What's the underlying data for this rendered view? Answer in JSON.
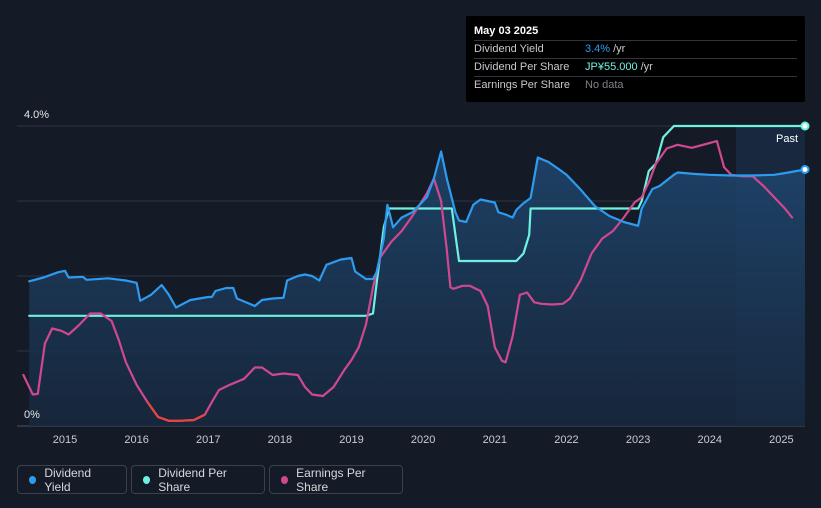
{
  "tooltip": {
    "date": "May 03 2025",
    "rows": [
      {
        "label": "Dividend Yield",
        "value": "3.4%",
        "unit": "/yr"
      },
      {
        "label": "Dividend Per Share",
        "value": "JP¥55.000",
        "unit": "/yr"
      },
      {
        "label": "Earnings Per Share",
        "value": "No data",
        "unit": ""
      }
    ]
  },
  "legend": [
    {
      "label": "Dividend Yield",
      "color": "#2d9bf0"
    },
    {
      "label": "Dividend Per Share",
      "color": "#6ff1e0"
    },
    {
      "label": "Earnings Per Share",
      "color": "#d0488f"
    }
  ],
  "chart_data": {
    "type": "line",
    "y_tick_labels": [
      "4.0%",
      "0%"
    ],
    "ylim": [
      0,
      4.0
    ],
    "xlim": [
      2014.33,
      2025.33
    ],
    "x_tick_labels": [
      "2015",
      "2016",
      "2017",
      "2018",
      "2019",
      "2020",
      "2021",
      "2022",
      "2023",
      "2024",
      "2025"
    ],
    "past_label": "Past",
    "grid": true,
    "legend_position": "bottom",
    "series": [
      {
        "name": "Dividend Yield",
        "color": "#2d9bf0",
        "points": [
          [
            2014.5,
            1.93
          ],
          [
            2014.7,
            1.98
          ],
          [
            2014.9,
            2.05
          ],
          [
            2015.0,
            2.07
          ],
          [
            2015.05,
            1.98
          ],
          [
            2015.25,
            1.99
          ],
          [
            2015.3,
            1.95
          ],
          [
            2015.6,
            1.97
          ],
          [
            2015.85,
            1.94
          ],
          [
            2016.0,
            1.91
          ],
          [
            2016.05,
            1.67
          ],
          [
            2016.2,
            1.75
          ],
          [
            2016.35,
            1.88
          ],
          [
            2016.45,
            1.75
          ],
          [
            2016.55,
            1.58
          ],
          [
            2016.75,
            1.68
          ],
          [
            2017.0,
            1.72
          ],
          [
            2017.05,
            1.72
          ],
          [
            2017.1,
            1.8
          ],
          [
            2017.25,
            1.84
          ],
          [
            2017.35,
            1.84
          ],
          [
            2017.4,
            1.7
          ],
          [
            2017.55,
            1.64
          ],
          [
            2017.65,
            1.6
          ],
          [
            2017.75,
            1.68
          ],
          [
            2017.9,
            1.7
          ],
          [
            2018.05,
            1.71
          ],
          [
            2018.1,
            1.94
          ],
          [
            2018.25,
            2.0
          ],
          [
            2018.35,
            2.02
          ],
          [
            2018.45,
            2.0
          ],
          [
            2018.55,
            1.94
          ],
          [
            2018.65,
            2.15
          ],
          [
            2018.85,
            2.22
          ],
          [
            2019.0,
            2.24
          ],
          [
            2019.05,
            2.06
          ],
          [
            2019.2,
            1.96
          ],
          [
            2019.3,
            1.96
          ],
          [
            2019.35,
            2.05
          ],
          [
            2019.45,
            2.5
          ],
          [
            2019.5,
            2.95
          ],
          [
            2019.58,
            2.65
          ],
          [
            2019.7,
            2.78
          ],
          [
            2019.85,
            2.85
          ],
          [
            2019.95,
            2.95
          ],
          [
            2020.05,
            3.05
          ],
          [
            2020.15,
            3.3
          ],
          [
            2020.25,
            3.66
          ],
          [
            2020.33,
            3.3
          ],
          [
            2020.45,
            2.85
          ],
          [
            2020.5,
            2.74
          ],
          [
            2020.6,
            2.72
          ],
          [
            2020.7,
            2.95
          ],
          [
            2020.8,
            3.02
          ],
          [
            2021.0,
            2.98
          ],
          [
            2021.05,
            2.85
          ],
          [
            2021.15,
            2.82
          ],
          [
            2021.25,
            2.78
          ],
          [
            2021.3,
            2.88
          ],
          [
            2021.4,
            2.97
          ],
          [
            2021.5,
            3.04
          ],
          [
            2021.6,
            3.58
          ],
          [
            2021.75,
            3.52
          ],
          [
            2021.9,
            3.42
          ],
          [
            2022.0,
            3.35
          ],
          [
            2022.2,
            3.15
          ],
          [
            2022.4,
            2.93
          ],
          [
            2022.6,
            2.8
          ],
          [
            2022.8,
            2.72
          ],
          [
            2023.0,
            2.67
          ],
          [
            2023.05,
            2.9
          ],
          [
            2023.2,
            3.16
          ],
          [
            2023.3,
            3.2
          ],
          [
            2023.5,
            3.35
          ],
          [
            2023.55,
            3.38
          ],
          [
            2023.8,
            3.36
          ],
          [
            2024.0,
            3.35
          ],
          [
            2024.3,
            3.34
          ],
          [
            2024.6,
            3.34
          ],
          [
            2024.9,
            3.35
          ],
          [
            2025.1,
            3.38
          ],
          [
            2025.33,
            3.42
          ]
        ]
      },
      {
        "name": "Dividend Per Share",
        "color": "#6ff1e0",
        "points": [
          [
            2014.5,
            1.47
          ],
          [
            2019.2,
            1.47
          ],
          [
            2019.3,
            1.5
          ],
          [
            2019.35,
            1.9
          ],
          [
            2019.45,
            2.65
          ],
          [
            2019.52,
            2.9
          ],
          [
            2020.3,
            2.9
          ],
          [
            2020.4,
            2.9
          ],
          [
            2020.5,
            2.2
          ],
          [
            2020.55,
            2.2
          ],
          [
            2021.3,
            2.2
          ],
          [
            2021.4,
            2.3
          ],
          [
            2021.48,
            2.55
          ],
          [
            2021.5,
            2.9
          ],
          [
            2023.0,
            2.9
          ],
          [
            2023.05,
            3.0
          ],
          [
            2023.15,
            3.4
          ],
          [
            2023.25,
            3.5
          ],
          [
            2023.35,
            3.85
          ],
          [
            2023.5,
            4.0
          ],
          [
            2025.33,
            4.0
          ]
        ]
      },
      {
        "name": "Earnings Per Share",
        "color": "#d0488f",
        "points": [
          [
            2014.42,
            0.68
          ],
          [
            2014.55,
            0.42
          ],
          [
            2014.62,
            0.43
          ],
          [
            2014.72,
            1.1
          ],
          [
            2014.82,
            1.3
          ],
          [
            2014.95,
            1.27
          ],
          [
            2015.05,
            1.22
          ],
          [
            2015.2,
            1.35
          ],
          [
            2015.35,
            1.5
          ],
          [
            2015.5,
            1.5
          ],
          [
            2015.65,
            1.4
          ],
          [
            2015.75,
            1.15
          ],
          [
            2015.85,
            0.85
          ],
          [
            2016.0,
            0.55
          ],
          [
            2016.15,
            0.32
          ],
          [
            2016.3,
            0.12
          ],
          [
            2016.45,
            0.07
          ],
          [
            2016.6,
            0.07
          ],
          [
            2016.8,
            0.08
          ],
          [
            2016.95,
            0.15
          ],
          [
            2017.05,
            0.32
          ],
          [
            2017.15,
            0.48
          ],
          [
            2017.3,
            0.55
          ],
          [
            2017.5,
            0.63
          ],
          [
            2017.65,
            0.78
          ],
          [
            2017.75,
            0.78
          ],
          [
            2017.9,
            0.68
          ],
          [
            2018.05,
            0.7
          ],
          [
            2018.25,
            0.68
          ],
          [
            2018.35,
            0.52
          ],
          [
            2018.45,
            0.42
          ],
          [
            2018.6,
            0.4
          ],
          [
            2018.75,
            0.52
          ],
          [
            2018.9,
            0.75
          ],
          [
            2019.0,
            0.88
          ],
          [
            2019.1,
            1.05
          ],
          [
            2019.2,
            1.35
          ],
          [
            2019.3,
            1.85
          ],
          [
            2019.4,
            2.25
          ],
          [
            2019.55,
            2.45
          ],
          [
            2019.7,
            2.6
          ],
          [
            2019.85,
            2.8
          ],
          [
            2019.95,
            2.95
          ],
          [
            2020.05,
            3.1
          ],
          [
            2020.15,
            3.3
          ],
          [
            2020.25,
            3.0
          ],
          [
            2020.33,
            2.35
          ],
          [
            2020.38,
            1.85
          ],
          [
            2020.42,
            1.83
          ],
          [
            2020.55,
            1.87
          ],
          [
            2020.65,
            1.87
          ],
          [
            2020.8,
            1.8
          ],
          [
            2020.9,
            1.6
          ],
          [
            2021.0,
            1.05
          ],
          [
            2021.1,
            0.87
          ],
          [
            2021.15,
            0.85
          ],
          [
            2021.25,
            1.2
          ],
          [
            2021.35,
            1.75
          ],
          [
            2021.45,
            1.78
          ],
          [
            2021.55,
            1.65
          ],
          [
            2021.65,
            1.63
          ],
          [
            2021.8,
            1.62
          ],
          [
            2021.95,
            1.63
          ],
          [
            2022.05,
            1.7
          ],
          [
            2022.2,
            1.95
          ],
          [
            2022.35,
            2.3
          ],
          [
            2022.5,
            2.5
          ],
          [
            2022.65,
            2.6
          ],
          [
            2022.8,
            2.78
          ],
          [
            2022.95,
            2.98
          ],
          [
            2023.05,
            3.05
          ],
          [
            2023.15,
            3.25
          ],
          [
            2023.25,
            3.5
          ],
          [
            2023.4,
            3.7
          ],
          [
            2023.55,
            3.75
          ],
          [
            2023.75,
            3.71
          ],
          [
            2023.95,
            3.76
          ],
          [
            2024.1,
            3.8
          ],
          [
            2024.2,
            3.45
          ],
          [
            2024.3,
            3.35
          ],
          [
            2024.45,
            3.33
          ],
          [
            2024.6,
            3.33
          ],
          [
            2024.75,
            3.2
          ],
          [
            2024.9,
            3.05
          ],
          [
            2025.05,
            2.9
          ],
          [
            2025.15,
            2.78
          ]
        ]
      }
    ]
  }
}
